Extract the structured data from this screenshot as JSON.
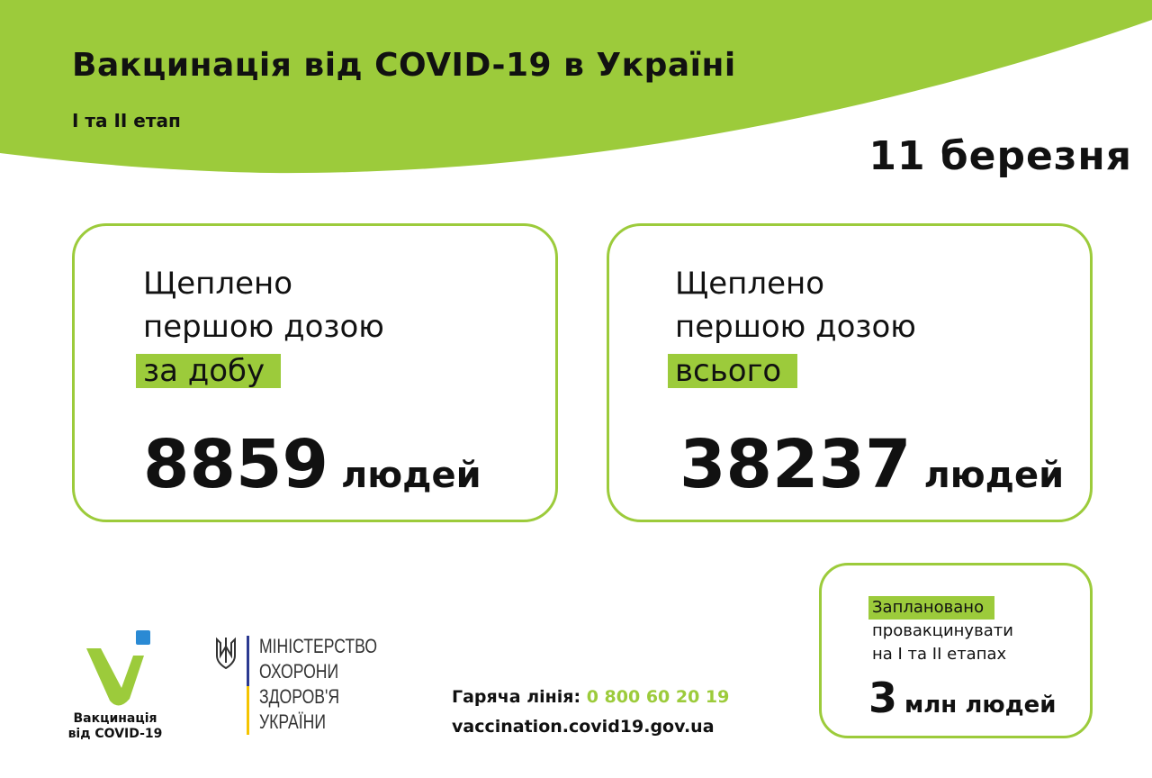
{
  "header": {
    "title": "Вакцинація від COVID-19 в Україні",
    "subtitle": "I та II етап",
    "date": "11 березня"
  },
  "cards": [
    {
      "line1": "Щеплено",
      "line2": "першою дозою",
      "highlight": "за добу",
      "value": "8859",
      "unit": "людей"
    },
    {
      "line1": "Щеплено",
      "line2": "першою дозою",
      "highlight": "всього",
      "value": "38237",
      "unit": "людей"
    }
  ],
  "plan": {
    "highlight": "Заплановано",
    "line2": "провакцинувати",
    "line3": "на I та II етапах",
    "value": "3",
    "unit": "млн людей"
  },
  "logo": {
    "line1": "Вакцинація",
    "line2": "від COVID-19"
  },
  "ministry": {
    "lines": [
      "МІНІСТЕРСТВО",
      "ОХОРОНИ",
      "ЗДОРОВ'Я",
      "УКРАЇНИ"
    ]
  },
  "footer": {
    "hotline_label": "Гаряча лінія:",
    "hotline_number": "0 800 60 20 19",
    "website": "vaccination.covid19.gov.ua"
  },
  "colors": {
    "accent": "#9ccb3b",
    "blue": "#2a8ad4",
    "yellow": "#f5c400",
    "navy": "#2b3990"
  }
}
